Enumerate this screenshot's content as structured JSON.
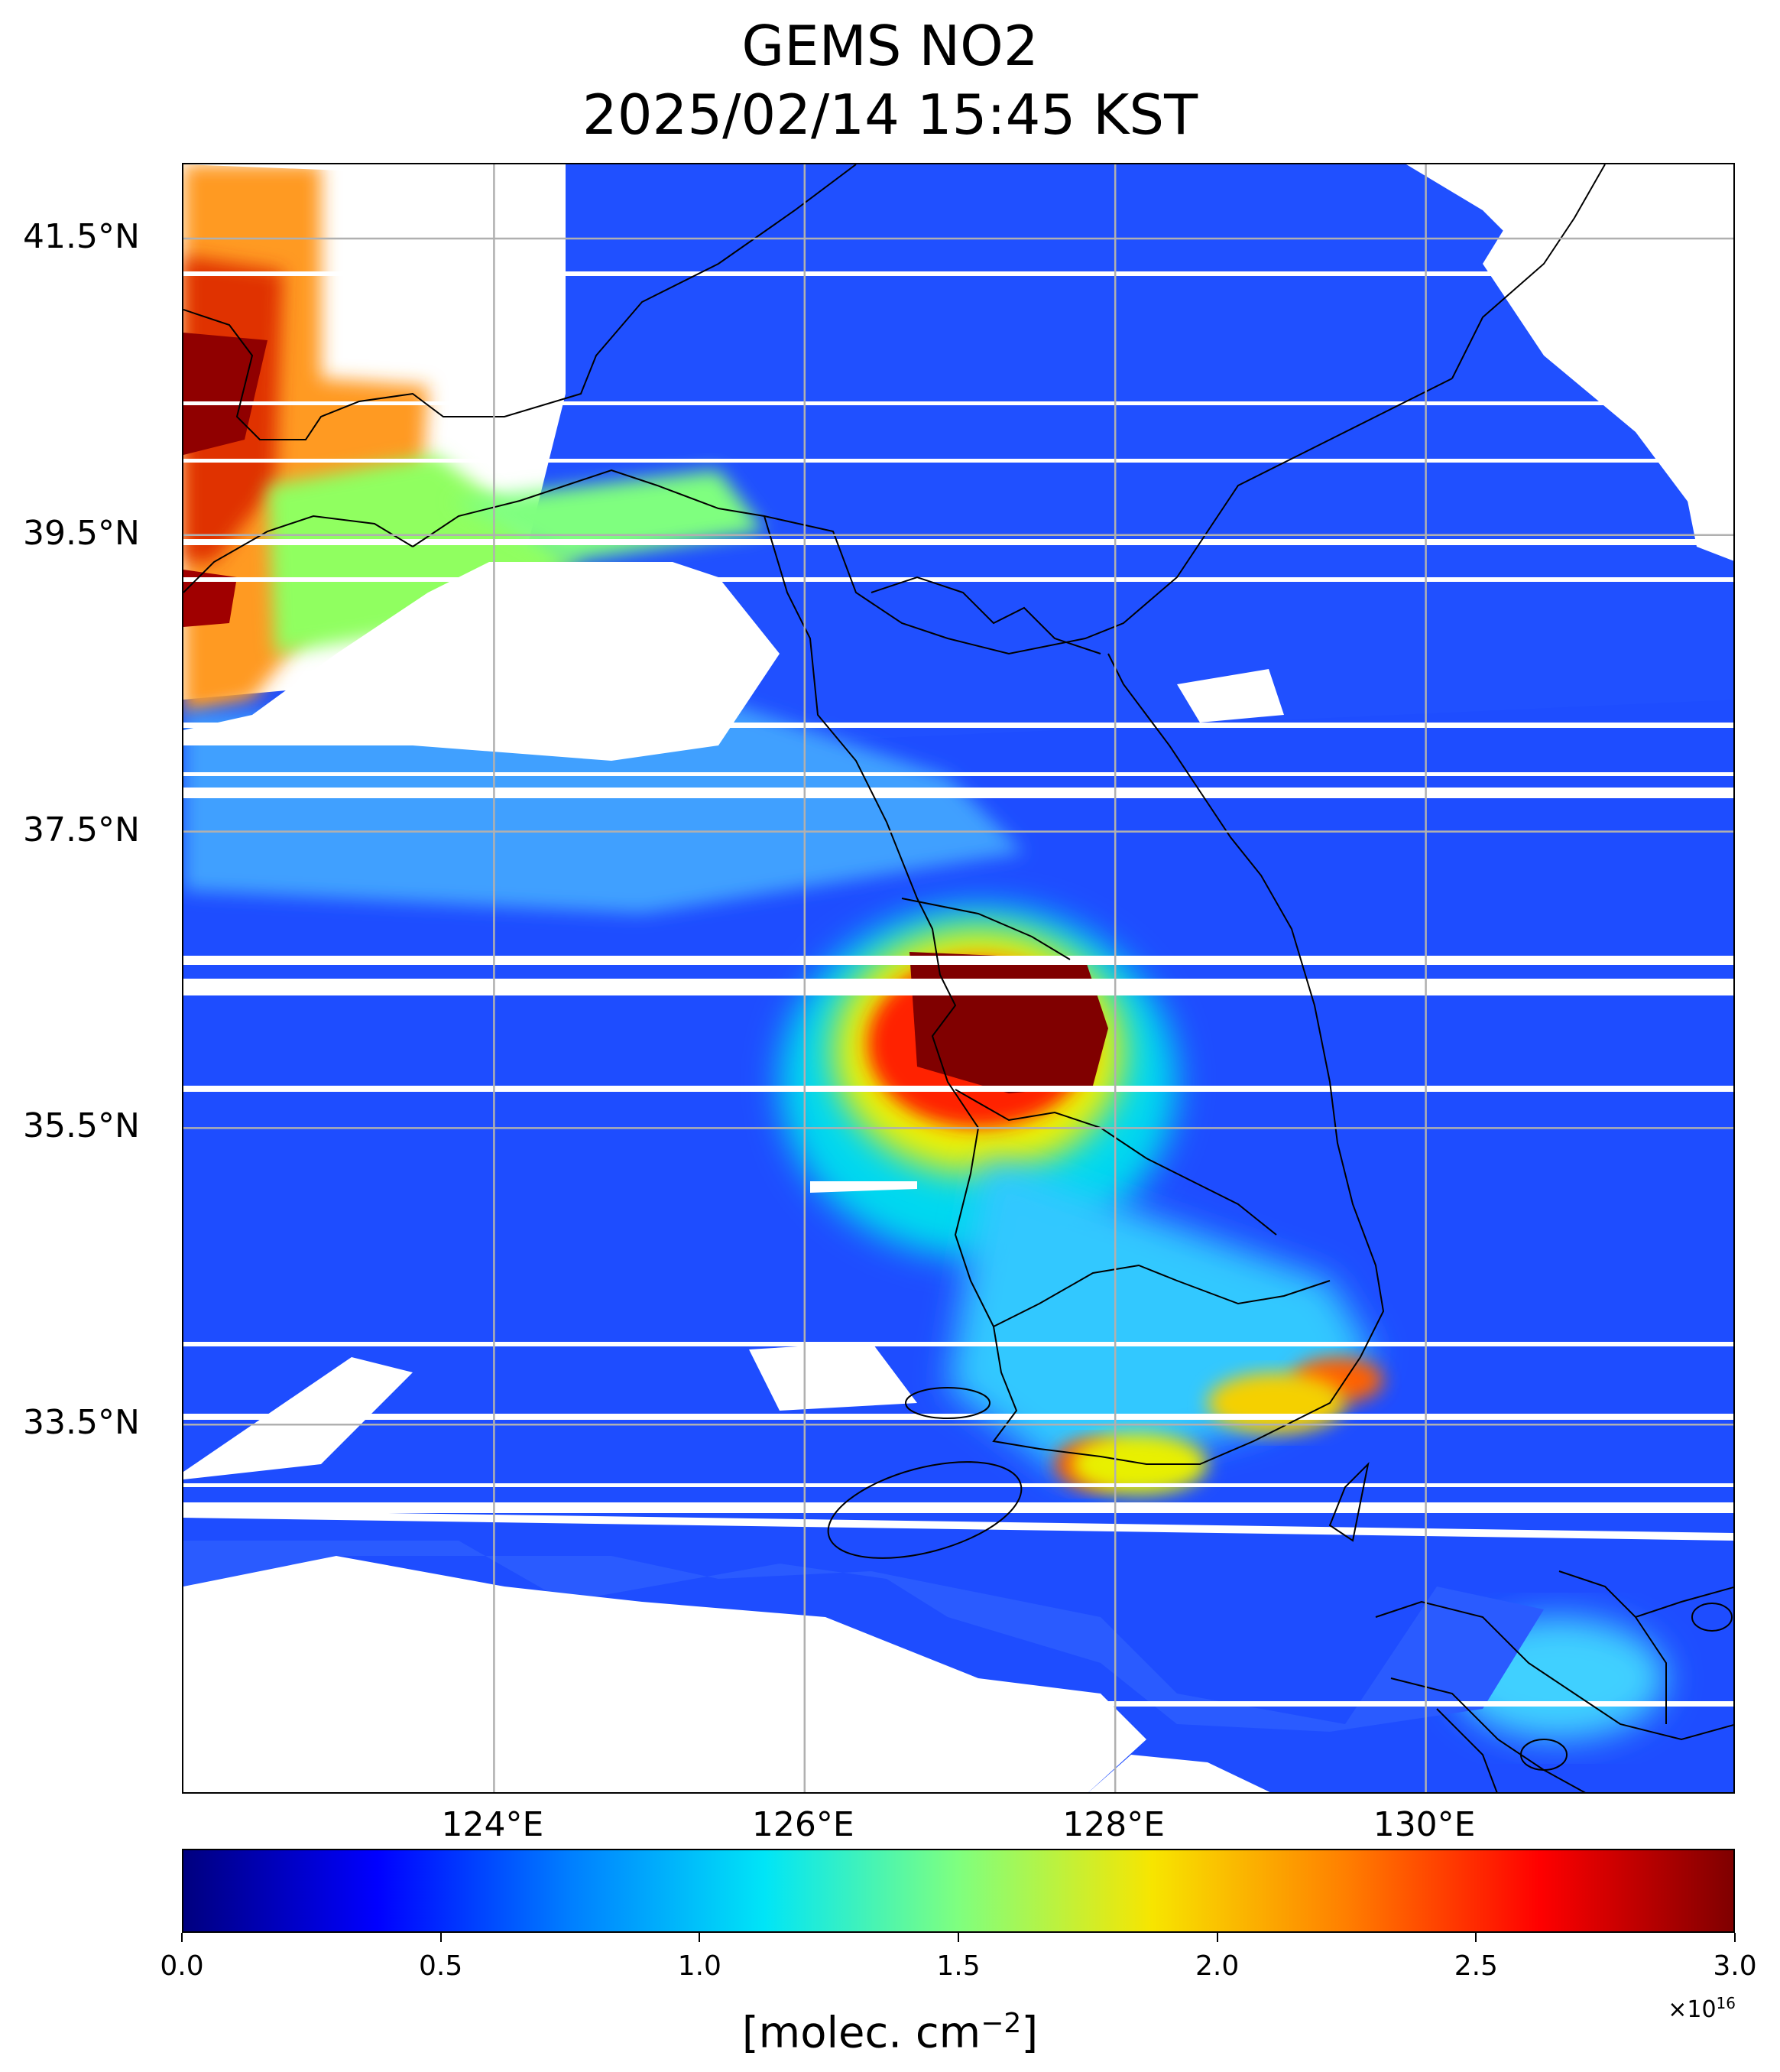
{
  "title": {
    "line1": "GEMS NO2",
    "line2": "2025/02/14 15:45 KST"
  },
  "map": {
    "lon_range": [
      122.0,
      132.0
    ],
    "lat_range": [
      31.0,
      42.0
    ],
    "lat_ticks": [
      {
        "value": 41.5,
        "label": "41.5°N"
      },
      {
        "value": 39.5,
        "label": "39.5°N"
      },
      {
        "value": 37.5,
        "label": "37.5°N"
      },
      {
        "value": 35.5,
        "label": "35.5°N"
      },
      {
        "value": 33.5,
        "label": "33.5°N"
      }
    ],
    "lon_ticks": [
      {
        "value": 124,
        "label": "124°E"
      },
      {
        "value": 126,
        "label": "126°E"
      },
      {
        "value": 128,
        "label": "128°E"
      },
      {
        "value": 130,
        "label": "130°E"
      }
    ],
    "grid": true
  },
  "colorbar": {
    "colormap": "jet",
    "min": 0.0,
    "max": 3.0,
    "ticks": [
      "0.0",
      "0.5",
      "1.0",
      "1.5",
      "2.0",
      "2.5",
      "3.0"
    ],
    "label": "[molec. cm",
    "label_sup": "−2",
    "label_end": "]",
    "multiplier": "×10",
    "multiplier_sup": "16",
    "colors": [
      "#00007f",
      "#0000ff",
      "#007fff",
      "#00e5f7",
      "#7fff7f",
      "#f7e500",
      "#ff7f00",
      "#ff0000",
      "#7f0000"
    ]
  }
}
